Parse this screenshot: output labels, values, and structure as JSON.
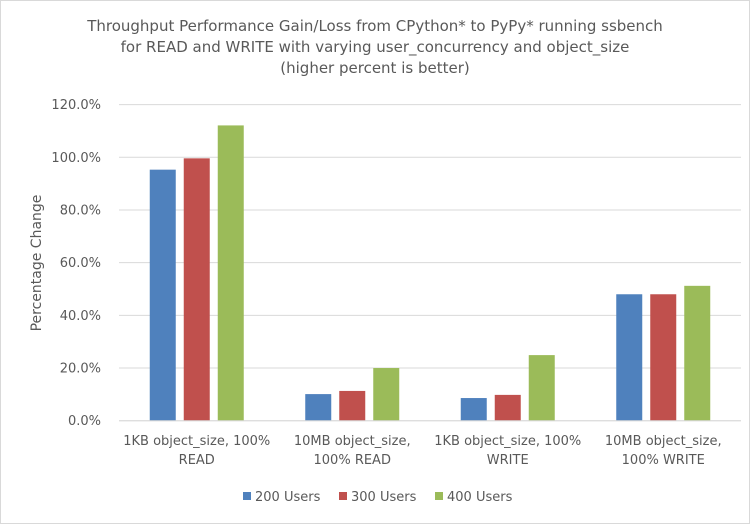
{
  "chart_data": {
    "type": "bar",
    "title": [
      "Throughput Performance Gain/Loss from CPython* to PyPy* running ssbench",
      "for READ and WRITE with varying user_concurrency and object_size",
      "(higher percent is better)"
    ],
    "xlabel": "",
    "ylabel": "Percentage Change",
    "ylim": [
      0,
      120
    ],
    "yticks": [
      "0.0%",
      "20.0%",
      "40.0%",
      "60.0%",
      "80.0%",
      "100.0%",
      "120.0%"
    ],
    "grid": true,
    "legend_position": "bottom",
    "categories": [
      [
        "1KB object_size, 100%",
        "READ"
      ],
      [
        "10MB object_size,",
        "100% READ"
      ],
      [
        "1KB object_size, 100%",
        "WRITE"
      ],
      [
        "10MB object_size,",
        "100% WRITE"
      ]
    ],
    "series": [
      {
        "name": "200 Users",
        "color": "#4f81bd",
        "values": [
          95.3,
          10.1,
          8.6,
          48.0
        ]
      },
      {
        "name": "300 Users",
        "color": "#c0504d",
        "values": [
          99.6,
          11.3,
          9.8,
          48.0
        ]
      },
      {
        "name": "400 Users",
        "color": "#9bbb59",
        "values": [
          112.1,
          20.0,
          24.9,
          51.2
        ]
      }
    ]
  }
}
